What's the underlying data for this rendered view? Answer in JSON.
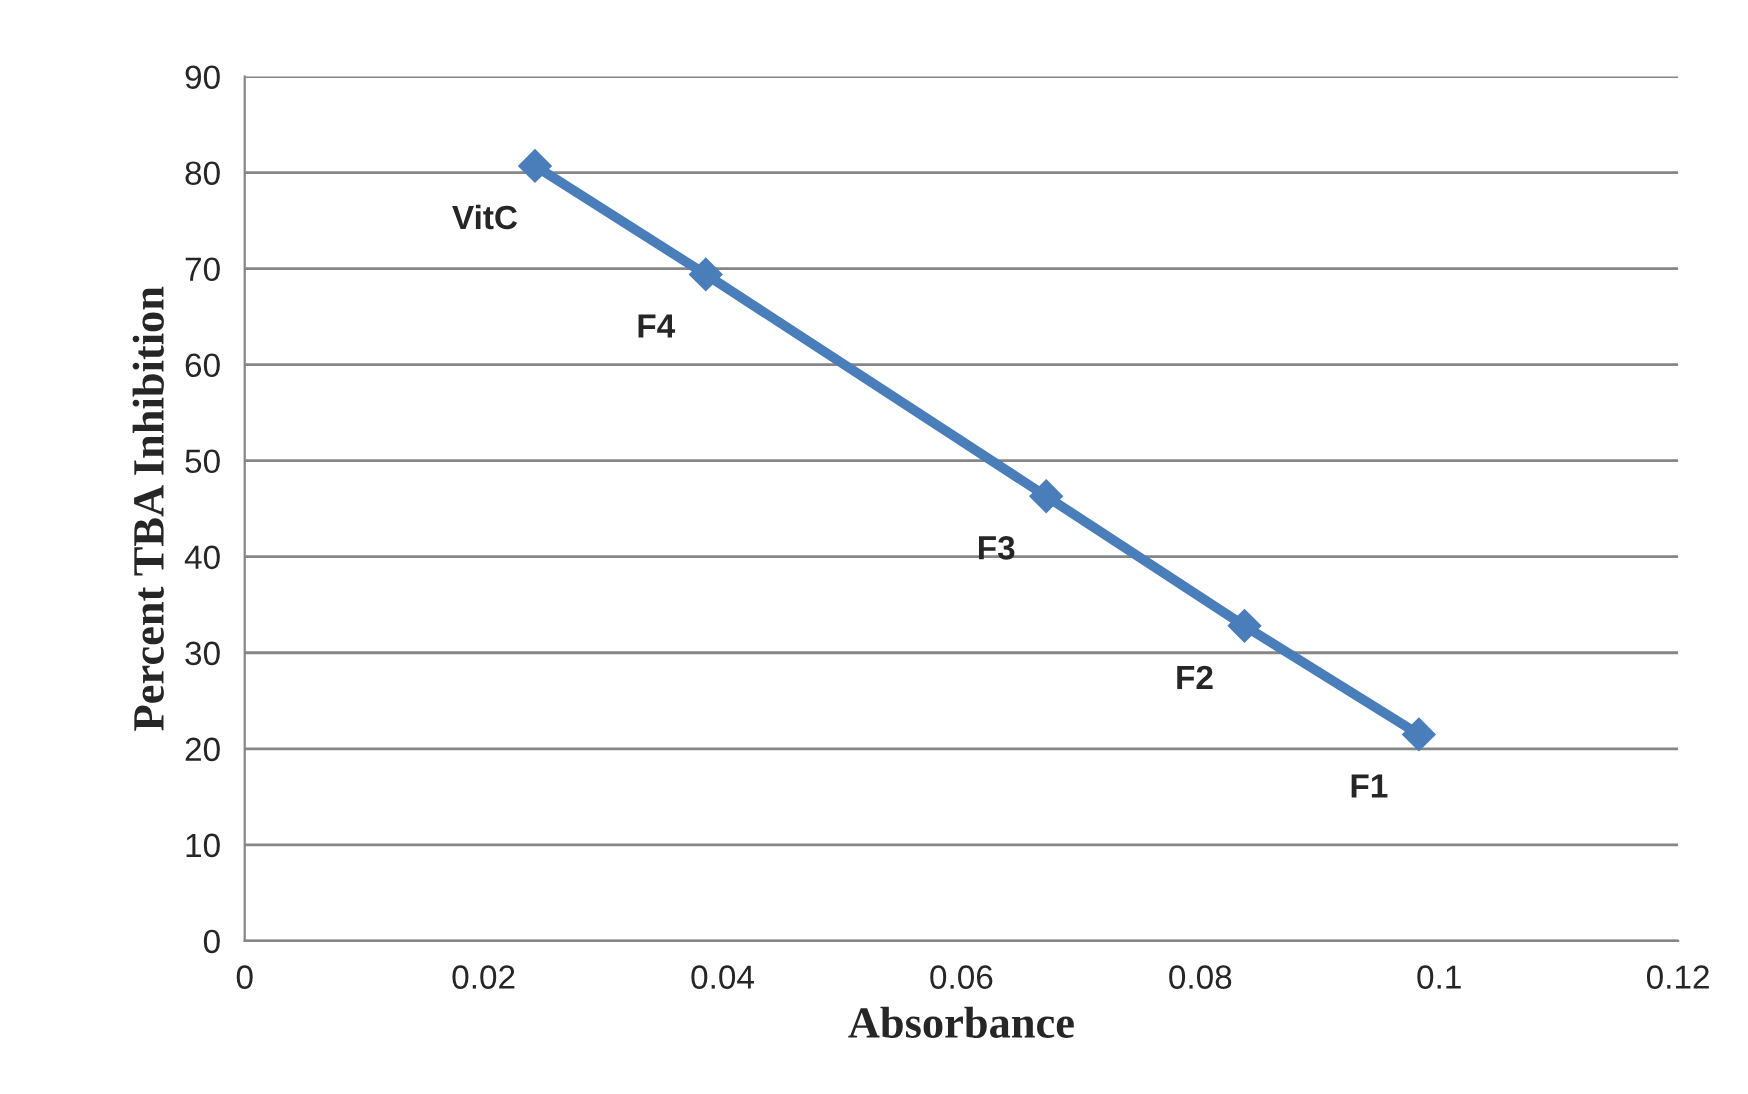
{
  "chart_data": {
    "type": "line",
    "xlabel": "Absorbance",
    "ylabel": "Percent TBA Inhibition",
    "x": [
      0.0243,
      0.0386,
      0.0671,
      0.0837,
      0.0983
    ],
    "series": [
      {
        "color": "#4a7ebb",
        "values": [
          80.7,
          69.4,
          46.3,
          32.8,
          21.5
        ]
      }
    ],
    "marker": "diamond",
    "line_style": "solid",
    "grid": "y",
    "legend": false,
    "xlim": [
      0,
      0.12
    ],
    "xticks": [
      0,
      0.02,
      0.04,
      0.06,
      0.08,
      0.1,
      0.12
    ],
    "ylim": [
      0,
      90
    ],
    "yticks": [
      0,
      10,
      20,
      30,
      40,
      50,
      60,
      70,
      80,
      90
    ],
    "annotations": [
      {
        "text": "VitC",
        "x": 0.0243,
        "y": 80.7
      },
      {
        "text": "F4",
        "x": 0.0386,
        "y": 69.4
      },
      {
        "text": "F3",
        "x": 0.0671,
        "y": 46.3
      },
      {
        "text": "F2",
        "x": 0.0837,
        "y": 32.8
      },
      {
        "text": "F1",
        "x": 0.0983,
        "y": 21.5
      }
    ]
  }
}
